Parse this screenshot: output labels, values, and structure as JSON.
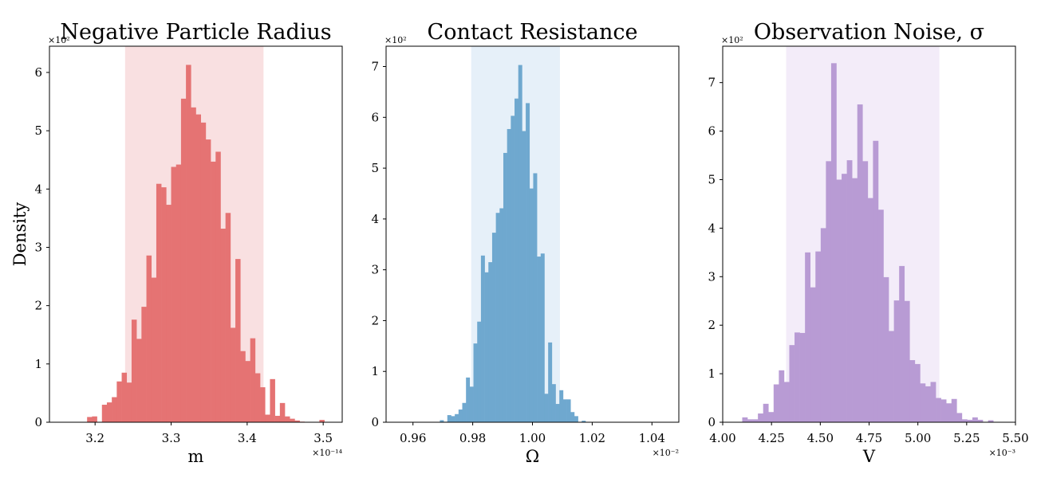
{
  "figure": {
    "ylabel": "Density"
  },
  "chart_data": [
    {
      "type": "bar",
      "title": "Negative Particle Radius",
      "xlabel": "m",
      "ylabel": "Density",
      "xlim": [
        3.14,
        3.525
      ],
      "ylim": [
        0,
        6.45
      ],
      "x_multiplier": "×10⁻¹⁴",
      "y_multiplier": "×10²",
      "xticks": [
        3.2,
        3.3,
        3.4,
        3.5
      ],
      "xtick_labels": [
        "3.2",
        "3.3",
        "3.4",
        "3.5"
      ],
      "yticks": [
        0,
        1,
        2,
        3,
        4,
        5,
        6
      ],
      "ytick_labels": [
        "0",
        "1",
        "2",
        "3",
        "4",
        "5",
        "6"
      ],
      "shaded_interval": [
        3.2395,
        3.4215
      ],
      "color": "#e57373",
      "shade_color": "#f9e0e1",
      "bin_width": 0.0065,
      "bin_start": 3.1895,
      "values": [
        0.09,
        0.1,
        0,
        0.3,
        0.34,
        0.43,
        0.7,
        0.85,
        0.68,
        1.76,
        1.43,
        1.98,
        2.86,
        2.48,
        4.09,
        4.03,
        3.73,
        4.38,
        4.42,
        5.55,
        6.13,
        5.4,
        5.28,
        5.14,
        4.85,
        4.47,
        4.64,
        3.32,
        3.59,
        1.62,
        2.8,
        1.22,
        1.05,
        1.44,
        0.84,
        0.6,
        0.13,
        0.74,
        0.11,
        0.33,
        0.1,
        0.06,
        0.03,
        0.01,
        0,
        0,
        0,
        0.04
      ]
    },
    {
      "type": "bar",
      "title": "Contact Resistance",
      "xlabel": "Ω",
      "ylabel": "",
      "xlim": [
        0.951,
        1.049
      ],
      "ylim": [
        0,
        7.4
      ],
      "x_multiplier": "×10⁻²",
      "y_multiplier": "×10²",
      "xticks": [
        0.96,
        0.98,
        1.0,
        1.02,
        1.04
      ],
      "xtick_labels": [
        "0.96",
        "0.98",
        "1.00",
        "1.02",
        "1.04"
      ],
      "yticks": [
        0,
        1,
        2,
        3,
        4,
        5,
        6,
        7
      ],
      "ytick_labels": [
        "0",
        "1",
        "2",
        "3",
        "4",
        "5",
        "6",
        "7"
      ],
      "shaded_interval": [
        0.9795,
        1.0092
      ],
      "color": "#6fa8cf",
      "shade_color": "#e6f0f9",
      "bin_width": 0.00125,
      "bin_start": 0.969,
      "values": [
        0.04,
        0.01,
        0.14,
        0.12,
        0.16,
        0.25,
        0.38,
        0.88,
        0.7,
        1.55,
        1.98,
        3.28,
        2.95,
        3.15,
        3.73,
        4.12,
        4.21,
        5.3,
        5.77,
        6.03,
        6.37,
        7.03,
        5.73,
        6.28,
        4.6,
        4.9,
        3.26,
        3.32,
        0.56,
        1.57,
        0.75,
        0.36,
        0.63,
        0.45,
        0.45,
        0.2,
        0.12,
        0,
        0.03
      ]
    },
    {
      "type": "bar",
      "title": "Observation Noise, σ",
      "xlabel": "V",
      "ylabel": "",
      "xlim": [
        4.0,
        5.5
      ],
      "ylim": [
        0,
        7.75
      ],
      "x_multiplier": "×10⁻³",
      "y_multiplier": "×10²",
      "xticks": [
        4.0,
        4.25,
        4.5,
        4.75,
        5.0,
        5.25,
        5.5
      ],
      "xtick_labels": [
        "4.00",
        "4.25",
        "4.50",
        "4.75",
        "5.00",
        "5.25",
        "5.50"
      ],
      "yticks": [
        0,
        1,
        2,
        3,
        4,
        5,
        6,
        7
      ],
      "ytick_labels": [
        "0",
        "1",
        "2",
        "3",
        "4",
        "5",
        "6",
        "7"
      ],
      "shaded_interval": [
        4.325,
        5.11
      ],
      "color": "#b89bd4",
      "shade_color": "#f3ecf9",
      "bin_width": 0.0268,
      "bin_start": 4.1,
      "values": [
        0.1,
        0.06,
        0.06,
        0.18,
        0.38,
        0.21,
        0.78,
        1.07,
        0.83,
        1.59,
        1.85,
        1.84,
        3.5,
        2.78,
        3.52,
        4.0,
        5.38,
        7.4,
        5.0,
        5.12,
        5.4,
        5.03,
        6.55,
        5.38,
        4.62,
        5.8,
        4.38,
        2.99,
        1.88,
        2.51,
        3.22,
        2.5,
        1.28,
        1.2,
        0.8,
        0.74,
        0.83,
        0.5,
        0.47,
        0.39,
        0.48,
        0.19,
        0.06,
        0.05,
        0.1,
        0.05,
        0.0,
        0.04
      ]
    }
  ]
}
